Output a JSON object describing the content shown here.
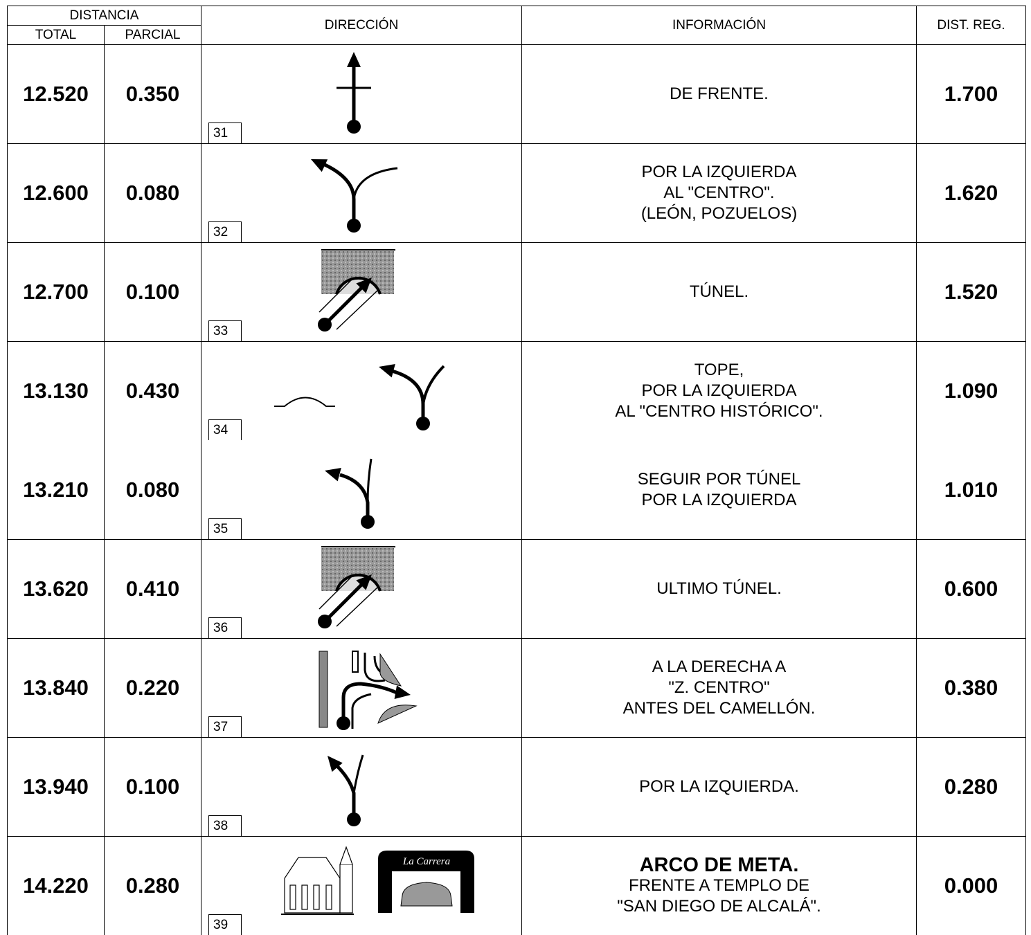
{
  "header": {
    "distancia": "DISTANCIA",
    "total": "TOTAL",
    "parcial": "PARCIAL",
    "direccion": "DIRECCIÓN",
    "informacion": "INFORMACIÓN",
    "dist_reg": "DIST. REG."
  },
  "rows": [
    {
      "total": "12.520",
      "parcial": "0.350",
      "number": "31",
      "info": [
        "DE FRENTE."
      ],
      "dist_reg": "1.700"
    },
    {
      "total": "12.600",
      "parcial": "0.080",
      "number": "32",
      "info": [
        "POR LA IZQUIERDA",
        "AL \"CENTRO\".",
        "(LEÓN, POZUELOS)"
      ],
      "dist_reg": "1.620"
    },
    {
      "total": "12.700",
      "parcial": "0.100",
      "number": "33",
      "info": [
        "TÚNEL."
      ],
      "dist_reg": "1.520"
    },
    {
      "total": "13.130",
      "parcial": "0.430",
      "number": "34",
      "info": [
        "TOPE,",
        "POR LA IZQUIERDA",
        "AL \"CENTRO HISTÓRICO\"."
      ],
      "dist_reg": "1.090"
    },
    {
      "total": "13.210",
      "parcial": "0.080",
      "number": "35",
      "info": [
        "SEGUIR POR TÚNEL",
        "POR LA IZQUIERDA"
      ],
      "dist_reg": "1.010"
    },
    {
      "total": "13.620",
      "parcial": "0.410",
      "number": "36",
      "info": [
        "ULTIMO TÚNEL."
      ],
      "dist_reg": "0.600"
    },
    {
      "total": "13.840",
      "parcial": "0.220",
      "number": "37",
      "info": [
        "A LA DERECHA A",
        "\"Z. CENTRO\"",
        "ANTES DEL CAMELLÓN."
      ],
      "dist_reg": "0.380"
    },
    {
      "total": "13.940",
      "parcial": "0.100",
      "number": "38",
      "info": [
        "POR LA IZQUIERDA."
      ],
      "dist_reg": "0.280"
    },
    {
      "total": "14.220",
      "parcial": "0.280",
      "number": "39",
      "info_title": "ARCO DE META.",
      "info": [
        "FRENTE A TEMPLO DE",
        "\"SAN DIEGO DE ALCALÁ\"."
      ],
      "dist_reg": "0.000",
      "logo_text": "La Carrera"
    }
  ]
}
